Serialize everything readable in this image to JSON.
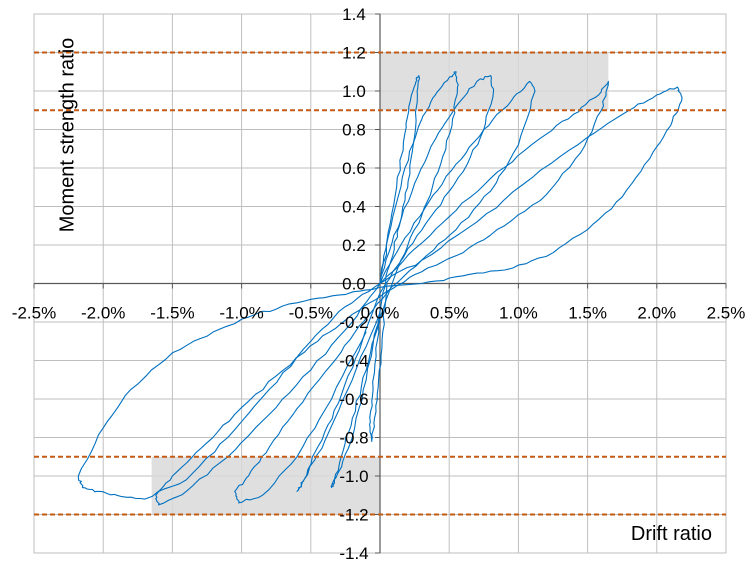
{
  "chart_data": {
    "type": "line",
    "xlabel": "Drift  ratio",
    "ylabel": "Moment  strength ratio",
    "xlim": [
      -2.5,
      2.5
    ],
    "ylim": [
      -1.4,
      1.4
    ],
    "x_unit": "%",
    "x_ticks": [
      -2.5,
      -2.0,
      -1.5,
      -1.0,
      -0.5,
      0.0,
      0.5,
      1.0,
      1.5,
      2.0,
      2.5
    ],
    "x_tick_labels": [
      "-2.5%",
      "-2.0%",
      "-1.5%",
      "-1.0%",
      "-0.5%",
      "0.0%",
      "0.5%",
      "1.0%",
      "1.5%",
      "2.0%",
      "2.5%"
    ],
    "y_ticks": [
      -1.4,
      -1.2,
      -1.0,
      -0.8,
      -0.6,
      -0.4,
      -0.2,
      0.0,
      0.2,
      0.4,
      0.6,
      0.8,
      1.0,
      1.2,
      1.4
    ],
    "y_tick_labels": [
      "-1.4",
      "-1.2",
      "-1.0",
      "-0.8",
      "-0.6",
      "-0.4",
      "-0.2",
      "0.0",
      "0.2",
      "0.4",
      "0.6",
      "0.8",
      "1.0",
      "1.2",
      "1.4"
    ],
    "grid": true,
    "colors": {
      "hysteresis": "#0070c0",
      "limit_line": "#c55a11",
      "band": "#d9d9d9"
    },
    "reference_lines_y": [
      1.2,
      0.9,
      -0.9,
      -1.2
    ],
    "shaded_bands": [
      {
        "x": [
          0.0,
          1.65
        ],
        "y": [
          0.9,
          1.2
        ]
      },
      {
        "x": [
          -1.65,
          0.0
        ],
        "y": [
          -1.2,
          -0.9
        ]
      }
    ],
    "series": [
      {
        "x": [
          0,
          0.05,
          0.12,
          0.18,
          0.22,
          0.26,
          0.28,
          0.27,
          0.24,
          0.2,
          0.14,
          0.08,
          0.02,
          -0.02,
          -0.05,
          -0.07,
          -0.06,
          -0.04,
          -0.01,
          0.02,
          0.05
        ],
        "y": [
          0,
          0.22,
          0.5,
          0.78,
          0.95,
          1.05,
          1.08,
          0.98,
          0.72,
          0.5,
          0.3,
          0.12,
          -0.05,
          -0.3,
          -0.55,
          -0.72,
          -0.82,
          -0.7,
          -0.5,
          -0.25,
          0.0
        ]
      },
      {
        "x": [
          0,
          0.08,
          0.18,
          0.3,
          0.4,
          0.5,
          0.55,
          0.56,
          0.52,
          0.42,
          0.3,
          0.15,
          0.0,
          -0.1,
          -0.2,
          -0.28,
          -0.33,
          -0.35,
          -0.3,
          -0.2,
          -0.1,
          0.0
        ],
        "y": [
          0,
          0.3,
          0.6,
          0.85,
          0.98,
          1.07,
          1.1,
          1.02,
          0.82,
          0.58,
          0.35,
          0.12,
          -0.18,
          -0.45,
          -0.7,
          -0.9,
          -1.04,
          -1.06,
          -0.98,
          -0.8,
          -0.5,
          -0.15
        ]
      },
      {
        "x": [
          0,
          0.1,
          0.25,
          0.4,
          0.55,
          0.7,
          0.8,
          0.82,
          0.75,
          0.6,
          0.4,
          0.2,
          0.0,
          -0.15,
          -0.3,
          -0.45,
          -0.55,
          -0.6,
          -0.55,
          -0.4,
          -0.2,
          0.0
        ],
        "y": [
          0,
          0.25,
          0.52,
          0.75,
          0.92,
          1.05,
          1.08,
          1.0,
          0.8,
          0.58,
          0.38,
          0.18,
          -0.05,
          -0.35,
          -0.62,
          -0.85,
          -1.02,
          -1.08,
          -1.02,
          -0.82,
          -0.5,
          -0.15
        ]
      },
      {
        "x": [
          0,
          0.15,
          0.35,
          0.55,
          0.75,
          0.95,
          1.08,
          1.12,
          1.0,
          0.8,
          0.55,
          0.3,
          0.05,
          -0.15,
          -0.35,
          -0.6,
          -0.8,
          -0.95,
          -1.05,
          -1.02,
          -0.85,
          -0.6,
          -0.35,
          -0.1
        ],
        "y": [
          0,
          0.2,
          0.42,
          0.62,
          0.8,
          0.95,
          1.05,
          1.0,
          0.72,
          0.48,
          0.28,
          0.12,
          -0.05,
          -0.22,
          -0.42,
          -0.65,
          -0.85,
          -1.0,
          -1.08,
          -1.14,
          -1.1,
          -0.9,
          -0.6,
          -0.25
        ]
      },
      {
        "x": [
          0,
          0.25,
          0.55,
          0.85,
          1.15,
          1.4,
          1.58,
          1.65,
          1.6,
          1.45,
          1.2,
          0.9,
          0.6,
          0.3,
          0.05,
          -0.2,
          -0.45,
          -0.75,
          -1.05,
          -1.3,
          -1.5,
          -1.62,
          -1.6,
          -1.4,
          -1.1,
          -0.8,
          -0.5,
          -0.2,
          0.0
        ],
        "y": [
          0,
          0.18,
          0.38,
          0.58,
          0.75,
          0.88,
          0.98,
          1.05,
          0.9,
          0.68,
          0.46,
          0.3,
          0.16,
          0.06,
          -0.04,
          -0.16,
          -0.3,
          -0.48,
          -0.68,
          -0.86,
          -1.0,
          -1.1,
          -1.15,
          -1.08,
          -0.9,
          -0.68,
          -0.45,
          -0.2,
          0.0
        ]
      },
      {
        "x": [
          0,
          0.3,
          0.7,
          1.1,
          1.5,
          1.8,
          2.0,
          2.15,
          2.18,
          2.1,
          1.95,
          1.75,
          1.5,
          1.2,
          0.9,
          0.6,
          0.3,
          0.0,
          -0.3,
          -0.6,
          -0.9,
          -1.2,
          -1.5,
          -1.8,
          -2.0,
          -2.18,
          -2.15,
          -2.05,
          -1.9,
          -1.7,
          -1.4,
          -1.1,
          -0.8,
          -0.5,
          -0.25,
          0.0
        ],
        "y": [
          0,
          0.12,
          0.32,
          0.55,
          0.76,
          0.9,
          0.98,
          1.02,
          0.95,
          0.82,
          0.65,
          0.45,
          0.28,
          0.14,
          0.07,
          0.04,
          0.0,
          -0.02,
          -0.06,
          -0.1,
          -0.16,
          -0.25,
          -0.36,
          -0.55,
          -0.75,
          -1.0,
          -1.06,
          -1.08,
          -1.1,
          -1.12,
          -1.02,
          -0.8,
          -0.55,
          -0.3,
          -0.12,
          0.0
        ]
      }
    ]
  }
}
